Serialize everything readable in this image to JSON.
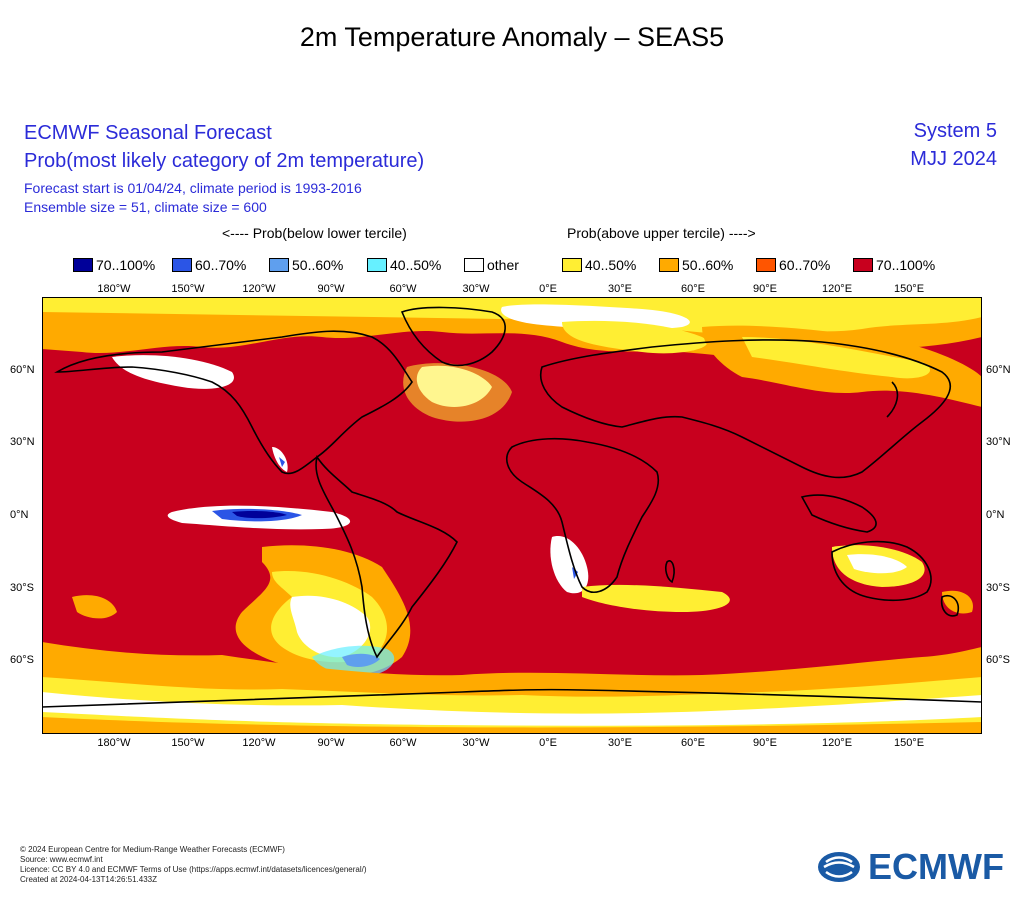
{
  "title": "2m Temperature Anomaly – SEAS5",
  "header": {
    "line1": "ECMWF Seasonal Forecast",
    "line2": "Prob(most likely category of 2m temperature)",
    "line3": "Forecast start is 01/04/24, climate period is 1993-2016",
    "line4": "Ensemble size = 51, climate size = 600",
    "system": "System 5",
    "season": "MJJ 2024"
  },
  "legend": {
    "below_label": "<---- Prob(below lower tercile)",
    "above_label": "Prob(above upper tercile) ---->",
    "items": [
      {
        "label": "70..100%",
        "color": "#000099"
      },
      {
        "label": "60..70%",
        "color": "#2b55e6"
      },
      {
        "label": "50..60%",
        "color": "#5f9fee"
      },
      {
        "label": "40..50%",
        "color": "#66f0ff"
      },
      {
        "label": "other",
        "color": "#ffffff"
      },
      {
        "label": "40..50%",
        "color": "#ffee33"
      },
      {
        "label": "50..60%",
        "color": "#ffaa00"
      },
      {
        "label": "60..70%",
        "color": "#ff5500"
      },
      {
        "label": "70..100%",
        "color": "#c8001e"
      }
    ]
  },
  "axes": {
    "lon_labels": [
      "180°W",
      "150°W",
      "120°W",
      "90°W",
      "60°W",
      "30°W",
      "0°E",
      "30°E",
      "60°E",
      "90°E",
      "120°E",
      "150°E"
    ],
    "lat_labels": [
      "60°N",
      "30°N",
      "0°N",
      "30°S",
      "60°S"
    ]
  },
  "footer": {
    "line1": "© 2024 European Centre for Medium-Range Weather Forecasts (ECMWF)",
    "line2": "Source: www.ecmwf.int",
    "line3": "Licence: CC BY 4.0 and ECMWF Terms of Use (https://apps.ecmwf.int/datasets/licences/general/)",
    "line4": "Created at 2024-04-13T14:26:51.433Z"
  },
  "logo": {
    "text": "ECMWF"
  }
}
